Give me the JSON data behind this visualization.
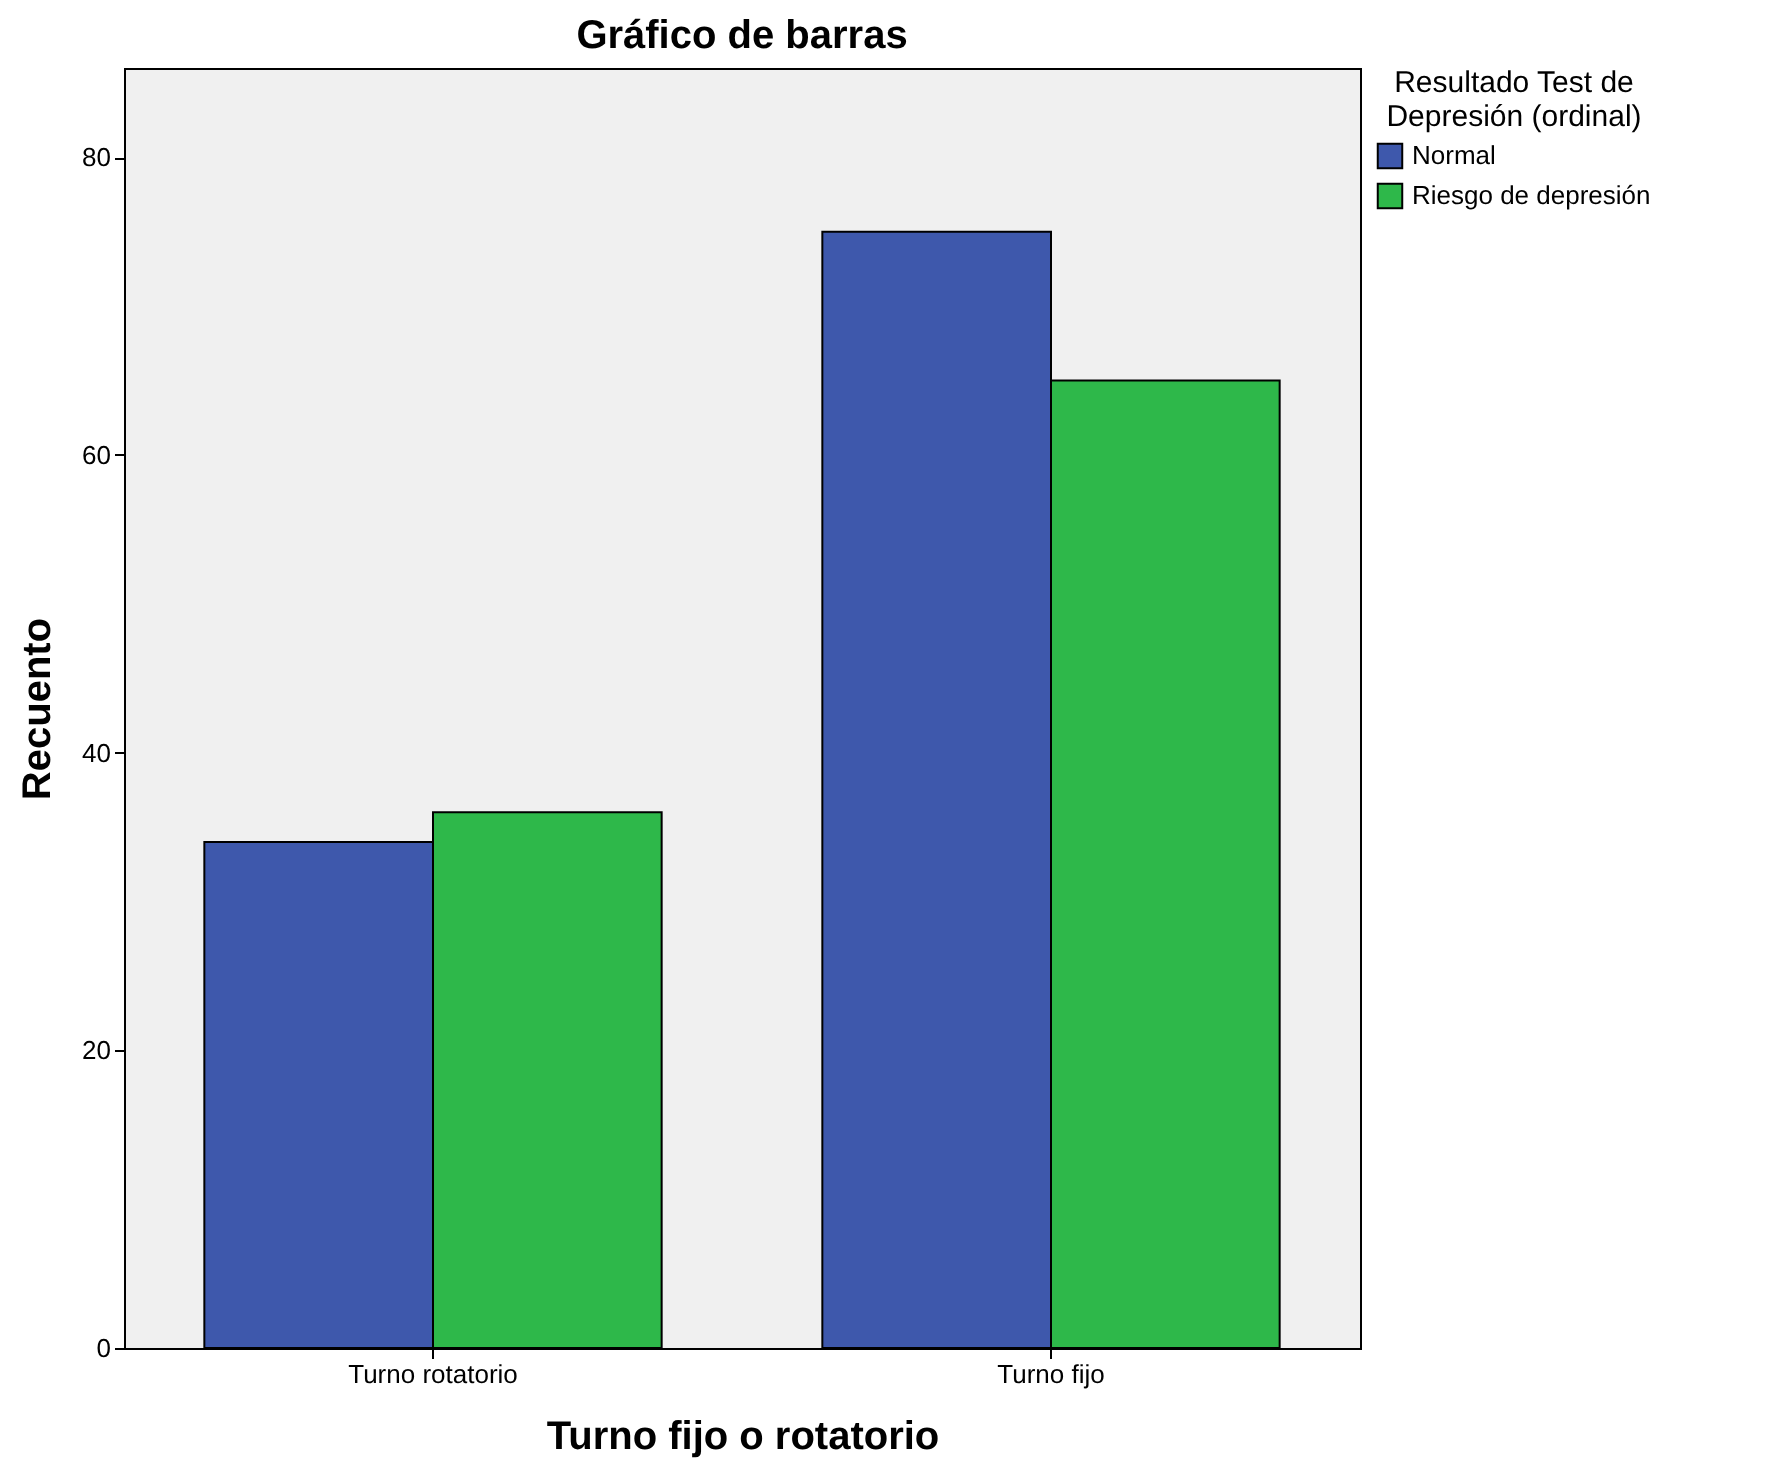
{
  "chart_data": {
    "type": "bar",
    "title": "Gráfico de barras",
    "xlabel": "Turno fijo o rotatorio",
    "ylabel": "Recuento",
    "legend_title": "Resultado Test de Depresión (ordinal)",
    "categories": [
      "Turno rotatorio",
      "Turno fijo"
    ],
    "series": [
      {
        "name": "Normal",
        "color": "#3e58ac",
        "values": [
          34,
          75
        ]
      },
      {
        "name": "Riesgo de depresión",
        "color": "#2eb84a",
        "values": [
          36,
          65
        ]
      }
    ],
    "ylim": [
      0,
      86
    ],
    "yticks": [
      0,
      20,
      40,
      60,
      80
    ],
    "grid": false,
    "legend": "top right"
  }
}
